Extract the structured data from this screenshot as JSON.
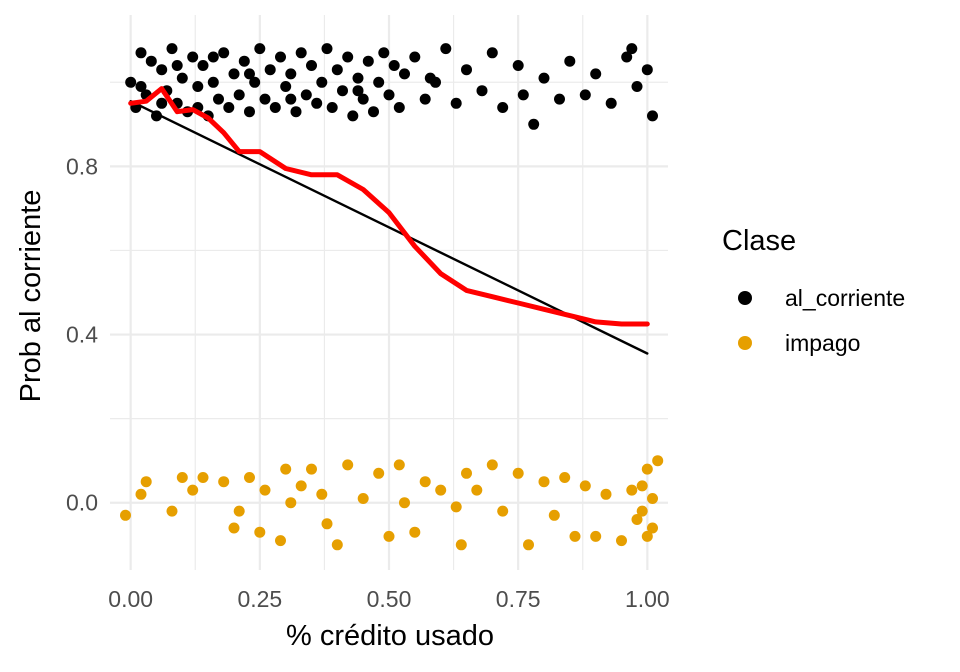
{
  "chart_data": {
    "type": "scatter",
    "xlabel": "% crédito usado",
    "ylabel": "Prob al corriente",
    "xlim": [
      -0.04,
      1.04
    ],
    "ylim": [
      -0.16,
      1.16
    ],
    "x_ticks": [
      0.0,
      0.25,
      0.5,
      0.75,
      1.0
    ],
    "x_tick_labels": [
      "0.00",
      "0.25",
      "0.50",
      "0.75",
      "1.00"
    ],
    "y_ticks": [
      0.0,
      0.4,
      0.8
    ],
    "y_tick_labels": [
      "0.0",
      "0.4",
      "0.8"
    ],
    "grid": true,
    "legend": {
      "title": "Clase",
      "position": "right",
      "entries": [
        {
          "label": "al_corriente",
          "color": "#000000"
        },
        {
          "label": "impago",
          "color": "#E69F00"
        }
      ]
    },
    "series": [
      {
        "name": "al_corriente",
        "kind": "points",
        "color": "#000000",
        "points": [
          [
            0.0,
            1.0
          ],
          [
            0.01,
            0.94
          ],
          [
            0.02,
            1.07
          ],
          [
            0.03,
            0.97
          ],
          [
            0.04,
            1.05
          ],
          [
            0.05,
            0.92
          ],
          [
            0.06,
            1.03
          ],
          [
            0.07,
            0.98
          ],
          [
            0.08,
            1.08
          ],
          [
            0.09,
            0.95
          ],
          [
            0.1,
            1.01
          ],
          [
            0.11,
            0.93
          ],
          [
            0.12,
            1.06
          ],
          [
            0.13,
            0.99
          ],
          [
            0.14,
            1.04
          ],
          [
            0.15,
            0.92
          ],
          [
            0.16,
            1.0
          ],
          [
            0.17,
            0.96
          ],
          [
            0.18,
            1.07
          ],
          [
            0.19,
            0.94
          ],
          [
            0.2,
            1.02
          ],
          [
            0.21,
            0.97
          ],
          [
            0.22,
            1.05
          ],
          [
            0.23,
            0.93
          ],
          [
            0.24,
            1.0
          ],
          [
            0.25,
            1.08
          ],
          [
            0.26,
            0.96
          ],
          [
            0.27,
            1.03
          ],
          [
            0.28,
            0.94
          ],
          [
            0.29,
            1.06
          ],
          [
            0.3,
            0.99
          ],
          [
            0.31,
            1.02
          ],
          [
            0.32,
            0.93
          ],
          [
            0.33,
            1.07
          ],
          [
            0.34,
            0.97
          ],
          [
            0.35,
            1.04
          ],
          [
            0.36,
            0.95
          ],
          [
            0.37,
            1.0
          ],
          [
            0.38,
            1.08
          ],
          [
            0.39,
            0.94
          ],
          [
            0.4,
            1.03
          ],
          [
            0.41,
            0.98
          ],
          [
            0.42,
            1.06
          ],
          [
            0.43,
            0.92
          ],
          [
            0.44,
            1.01
          ],
          [
            0.45,
            0.96
          ],
          [
            0.46,
            1.05
          ],
          [
            0.47,
            0.93
          ],
          [
            0.48,
            1.0
          ],
          [
            0.49,
            1.07
          ],
          [
            0.5,
            0.97
          ],
          [
            0.51,
            1.04
          ],
          [
            0.52,
            0.94
          ],
          [
            0.53,
            1.02
          ],
          [
            0.55,
            1.06
          ],
          [
            0.57,
            0.96
          ],
          [
            0.59,
            1.0
          ],
          [
            0.61,
            1.08
          ],
          [
            0.63,
            0.95
          ],
          [
            0.65,
            1.03
          ],
          [
            0.68,
            0.98
          ],
          [
            0.7,
            1.07
          ],
          [
            0.72,
            0.94
          ],
          [
            0.75,
            1.04
          ],
          [
            0.78,
            0.9
          ],
          [
            0.8,
            1.01
          ],
          [
            0.83,
            0.96
          ],
          [
            0.85,
            1.05
          ],
          [
            0.88,
            0.97
          ],
          [
            0.9,
            1.02
          ],
          [
            0.93,
            0.95
          ],
          [
            0.96,
            1.06
          ],
          [
            0.98,
            0.99
          ],
          [
            1.0,
            1.03
          ],
          [
            1.01,
            0.92
          ],
          [
            0.02,
            0.99
          ],
          [
            0.06,
            0.95
          ],
          [
            0.09,
            1.04
          ],
          [
            0.13,
            0.94
          ],
          [
            0.16,
            1.06
          ],
          [
            0.23,
            1.02
          ],
          [
            0.31,
            0.96
          ],
          [
            0.44,
            0.98
          ],
          [
            0.58,
            1.01
          ],
          [
            0.76,
            0.97
          ],
          [
            0.97,
            1.08
          ]
        ]
      },
      {
        "name": "impago",
        "kind": "points",
        "color": "#E69F00",
        "points": [
          [
            -0.01,
            -0.03
          ],
          [
            0.02,
            0.02
          ],
          [
            0.03,
            0.05
          ],
          [
            0.08,
            -0.02
          ],
          [
            0.1,
            0.06
          ],
          [
            0.12,
            0.03
          ],
          [
            0.14,
            0.06
          ],
          [
            0.18,
            0.05
          ],
          [
            0.2,
            -0.06
          ],
          [
            0.21,
            -0.02
          ],
          [
            0.23,
            0.06
          ],
          [
            0.25,
            -0.07
          ],
          [
            0.26,
            0.03
          ],
          [
            0.29,
            -0.09
          ],
          [
            0.3,
            0.08
          ],
          [
            0.31,
            0.0
          ],
          [
            0.33,
            0.04
          ],
          [
            0.35,
            0.08
          ],
          [
            0.37,
            0.02
          ],
          [
            0.38,
            -0.05
          ],
          [
            0.4,
            -0.1
          ],
          [
            0.42,
            0.09
          ],
          [
            0.45,
            0.01
          ],
          [
            0.48,
            0.07
          ],
          [
            0.5,
            -0.08
          ],
          [
            0.52,
            0.09
          ],
          [
            0.53,
            0.0
          ],
          [
            0.55,
            -0.07
          ],
          [
            0.57,
            0.05
          ],
          [
            0.6,
            0.03
          ],
          [
            0.63,
            -0.01
          ],
          [
            0.64,
            -0.1
          ],
          [
            0.65,
            0.07
          ],
          [
            0.67,
            0.03
          ],
          [
            0.7,
            0.09
          ],
          [
            0.72,
            -0.02
          ],
          [
            0.75,
            0.07
          ],
          [
            0.77,
            -0.1
          ],
          [
            0.8,
            0.05
          ],
          [
            0.82,
            -0.03
          ],
          [
            0.84,
            0.06
          ],
          [
            0.86,
            -0.08
          ],
          [
            0.88,
            0.04
          ],
          [
            0.9,
            -0.08
          ],
          [
            0.92,
            0.02
          ],
          [
            0.95,
            -0.09
          ],
          [
            0.97,
            0.03
          ],
          [
            0.99,
            -0.02
          ],
          [
            1.0,
            0.08
          ],
          [
            1.01,
            -0.06
          ],
          [
            1.02,
            0.1
          ],
          [
            0.99,
            0.04
          ],
          [
            0.98,
            -0.04
          ],
          [
            1.0,
            -0.08
          ],
          [
            1.01,
            0.01
          ]
        ]
      },
      {
        "name": "",
        "kind": "line",
        "color": "#000000",
        "points": [
          [
            0.0,
            0.955
          ],
          [
            1.0,
            0.355
          ]
        ]
      },
      {
        "name": "",
        "kind": "smooth",
        "color": "#ff0000",
        "points": [
          [
            0.0,
            0.95
          ],
          [
            0.03,
            0.955
          ],
          [
            0.06,
            0.985
          ],
          [
            0.09,
            0.93
          ],
          [
            0.12,
            0.935
          ],
          [
            0.15,
            0.915
          ],
          [
            0.18,
            0.88
          ],
          [
            0.21,
            0.835
          ],
          [
            0.25,
            0.835
          ],
          [
            0.3,
            0.795
          ],
          [
            0.35,
            0.78
          ],
          [
            0.4,
            0.78
          ],
          [
            0.45,
            0.745
          ],
          [
            0.5,
            0.69
          ],
          [
            0.55,
            0.61
          ],
          [
            0.6,
            0.545
          ],
          [
            0.65,
            0.505
          ],
          [
            0.7,
            0.49
          ],
          [
            0.75,
            0.475
          ],
          [
            0.8,
            0.46
          ],
          [
            0.85,
            0.445
          ],
          [
            0.9,
            0.43
          ],
          [
            0.95,
            0.425
          ],
          [
            1.0,
            0.425
          ]
        ]
      }
    ]
  }
}
